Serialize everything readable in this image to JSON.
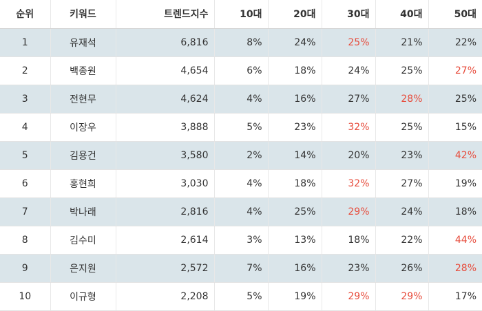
{
  "headers": {
    "rank": "순위",
    "keyword": "키워드",
    "trend": "트렌드지수",
    "age10": "10대",
    "age20": "20대",
    "age30": "30대",
    "age40": "40대",
    "age50": "50대"
  },
  "colors": {
    "highlight": "#e74c3c",
    "stripe": "#dae5ea"
  },
  "rows": [
    {
      "rank": "1",
      "keyword": "유재석",
      "trend": "6,816",
      "ages": [
        "8%",
        "24%",
        "25%",
        "21%",
        "22%"
      ],
      "highlight_col": 2
    },
    {
      "rank": "2",
      "keyword": "백종원",
      "trend": "4,654",
      "ages": [
        "6%",
        "18%",
        "24%",
        "25%",
        "27%"
      ],
      "highlight_col": 4
    },
    {
      "rank": "3",
      "keyword": "전현무",
      "trend": "4,624",
      "ages": [
        "4%",
        "16%",
        "27%",
        "28%",
        "25%"
      ],
      "highlight_col": 3
    },
    {
      "rank": "4",
      "keyword": "이장우",
      "trend": "3,888",
      "ages": [
        "5%",
        "23%",
        "32%",
        "25%",
        "15%"
      ],
      "highlight_col": 2
    },
    {
      "rank": "5",
      "keyword": "김용건",
      "trend": "3,580",
      "ages": [
        "2%",
        "14%",
        "20%",
        "23%",
        "42%"
      ],
      "highlight_col": 4
    },
    {
      "rank": "6",
      "keyword": "홍현희",
      "trend": "3,030",
      "ages": [
        "4%",
        "18%",
        "32%",
        "27%",
        "19%"
      ],
      "highlight_col": 2
    },
    {
      "rank": "7",
      "keyword": "박나래",
      "trend": "2,816",
      "ages": [
        "4%",
        "25%",
        "29%",
        "24%",
        "18%"
      ],
      "highlight_col": 2
    },
    {
      "rank": "8",
      "keyword": "김수미",
      "trend": "2,614",
      "ages": [
        "3%",
        "13%",
        "18%",
        "22%",
        "44%"
      ],
      "highlight_col": 4
    },
    {
      "rank": "9",
      "keyword": "은지원",
      "trend": "2,572",
      "ages": [
        "7%",
        "16%",
        "23%",
        "26%",
        "28%"
      ],
      "highlight_col": 4
    },
    {
      "rank": "10",
      "keyword": "이규형",
      "trend": "2,208",
      "ages": [
        "5%",
        "19%",
        "29%",
        "29%",
        "17%"
      ],
      "highlight_col": [
        2,
        3
      ]
    }
  ]
}
